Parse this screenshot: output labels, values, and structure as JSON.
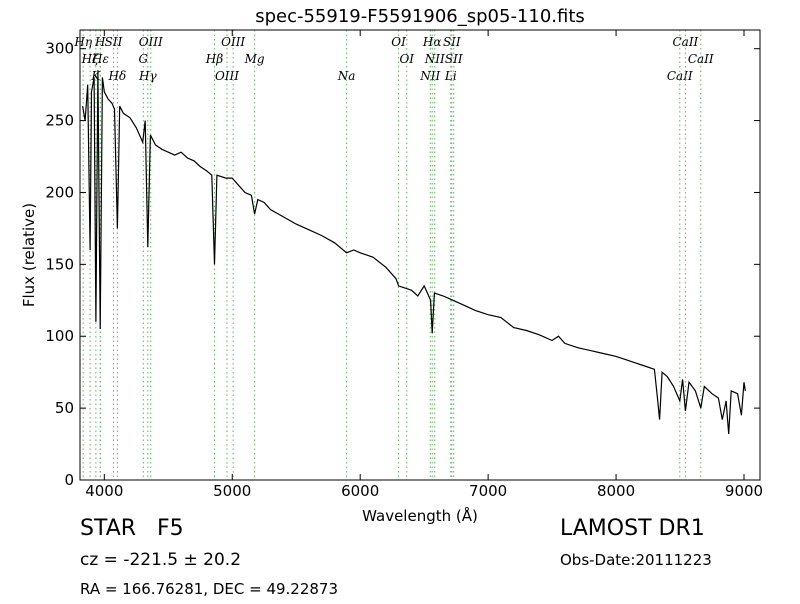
{
  "chart_data": {
    "type": "line",
    "title": "spec-55919-F5591906_sp05-110.fits",
    "x_label": "Wavelength (Å)",
    "y_label": "Flux (relative)",
    "xlim": [
      3810,
      9125
    ],
    "ylim": [
      0,
      313
    ],
    "xticks": [
      4000,
      5000,
      6000,
      7000,
      8000,
      9000
    ],
    "yticks": [
      0,
      50,
      100,
      150,
      200,
      250,
      300
    ],
    "line_color": "#000000",
    "marker_color": "#5cb85c",
    "series": [
      {
        "name": "flux",
        "color": "#000000",
        "x": [
          3830,
          3850,
          3870,
          3889,
          3900,
          3920,
          3934,
          3950,
          3968,
          3985,
          4000,
          4030,
          4060,
          4080,
          4102,
          4120,
          4150,
          4200,
          4250,
          4300,
          4320,
          4340,
          4360,
          4400,
          4450,
          4500,
          4550,
          4600,
          4650,
          4700,
          4750,
          4800,
          4840,
          4861,
          4880,
          4950,
          5000,
          5050,
          5100,
          5150,
          5175,
          5200,
          5250,
          5300,
          5400,
          5500,
          5600,
          5700,
          5800,
          5894,
          5950,
          6000,
          6100,
          6200,
          6280,
          6300,
          6400,
          6450,
          6500,
          6550,
          6563,
          6580,
          6650,
          6700,
          6800,
          6900,
          7000,
          7100,
          7200,
          7300,
          7400,
          7500,
          7550,
          7600,
          7700,
          7800,
          7900,
          8000,
          8100,
          8200,
          8300,
          8320,
          8340,
          8360,
          8400,
          8450,
          8498,
          8520,
          8542,
          8570,
          8620,
          8662,
          8690,
          8750,
          8800,
          8830,
          8860,
          8880,
          8900,
          8950,
          8980,
          9000,
          9010
        ],
        "values": [
          260,
          250,
          275,
          160,
          270,
          280,
          110,
          285,
          105,
          280,
          270,
          265,
          262,
          258,
          175,
          260,
          255,
          252,
          245,
          235,
          250,
          162,
          240,
          233,
          230,
          228,
          226,
          228,
          224,
          222,
          218,
          215,
          212,
          150,
          212,
          210,
          210,
          205,
          200,
          198,
          185,
          195,
          193,
          188,
          183,
          178,
          174,
          170,
          165,
          158,
          160,
          158,
          155,
          148,
          140,
          135,
          132,
          128,
          135,
          125,
          102,
          130,
          128,
          126,
          122,
          118,
          115,
          113,
          106,
          104,
          101,
          97,
          100,
          95,
          92,
          90,
          88,
          86,
          83,
          80,
          77,
          60,
          42,
          75,
          72,
          65,
          55,
          70,
          48,
          68,
          62,
          50,
          65,
          60,
          57,
          42,
          55,
          32,
          62,
          60,
          45,
          68,
          62
        ]
      }
    ],
    "lines": [
      {
        "label": "Hη",
        "x": 3835
      },
      {
        "label": "Hζ",
        "x": 3889
      },
      {
        "label": "K",
        "x": 3934
      },
      {
        "label": "H",
        "x": 3968
      },
      {
        "label": "Hε",
        "x": 3970
      },
      {
        "label": "Hδ",
        "x": 4102
      },
      {
        "label": "SII",
        "x": 4072
      },
      {
        "label": "G",
        "x": 4305
      },
      {
        "label": "Hγ",
        "x": 4340
      },
      {
        "label": "OIII",
        "x": 4363
      },
      {
        "label": "Hβ",
        "x": 4861
      },
      {
        "label": "OIII",
        "x": 4959
      },
      {
        "label": "OIII",
        "x": 5007
      },
      {
        "label": "Mg",
        "x": 5175
      },
      {
        "label": "Na",
        "x": 5894
      },
      {
        "label": "OI",
        "x": 6300
      },
      {
        "label": "OI",
        "x": 6364
      },
      {
        "label": "NII",
        "x": 6548
      },
      {
        "label": "Hα",
        "x": 6563
      },
      {
        "label": "NII",
        "x": 6583
      },
      {
        "label": "Li",
        "x": 6708
      },
      {
        "label": "SII",
        "x": 6716
      },
      {
        "label": "SII",
        "x": 6731
      },
      {
        "label": "CaII",
        "x": 8498
      },
      {
        "label": "CaII",
        "x": 8542
      },
      {
        "label": "CaII",
        "x": 8662
      }
    ],
    "info": {
      "object": "STAR   F5",
      "cz": "cz = -221.5 ± 20.2",
      "coords": "RA = 166.76281, DEC = 49.22873",
      "survey": "LAMOST DR1",
      "obs_date": "Obs-Date:20111223"
    }
  }
}
